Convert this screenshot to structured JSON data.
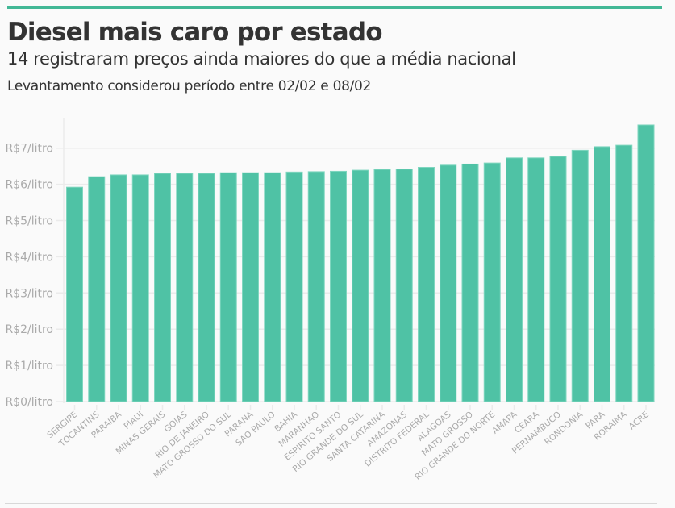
{
  "header": {
    "title": "Diesel mais caro por estado",
    "subtitle": "14 registraram preços ainda maiores do que a média nacional",
    "note": "Levantamento considerou período entre 02/02 e 08/02"
  },
  "colors": {
    "accent": "#43b896",
    "bar": "#4fc2a5",
    "bar_stroke": "#7fd6bf",
    "grid": "#ebebeb",
    "axis_text": "#aaaaaa",
    "text": "#333333"
  },
  "chart_data": {
    "type": "bar",
    "title": "Diesel mais caro por estado",
    "subtitle": "14 registraram preços ainda maiores do que a média nacional",
    "xlabel": "",
    "ylabel": "",
    "ylim": [
      0,
      7.8
    ],
    "grid": true,
    "legend": "none",
    "y_ticks": [
      0,
      1,
      2,
      3,
      4,
      5,
      6,
      7
    ],
    "y_tick_labels": [
      "R$0/litro",
      "R$1/litro",
      "R$2/litro",
      "R$3/litro",
      "R$4/litro",
      "R$5/litro",
      "R$6/litro",
      "R$7/litro"
    ],
    "categories": [
      "SERGIPE",
      "TOCANTINS",
      "PARAIBA",
      "PIAUI",
      "MINAS GERAIS",
      "GOIAS",
      "RIO DE JANEIRO",
      "MATO GROSSO DO SUL",
      "PARANA",
      "SAO PAULO",
      "BAHIA",
      "MARANHAO",
      "ESPIRITO SANTO",
      "RIO GRANDE DO SUL",
      "SANTA CATARINA",
      "AMAZONAS",
      "DISTRITO FEDERAL",
      "ALAGOAS",
      "MATO GROSSO",
      "RIO GRANDE DO NORTE",
      "AMAPA",
      "CEARA",
      "PERNAMBUCO",
      "RONDONIA",
      "PARA",
      "RORAIMA",
      "ACRE"
    ],
    "values": [
      5.92,
      6.21,
      6.26,
      6.26,
      6.3,
      6.3,
      6.3,
      6.32,
      6.32,
      6.32,
      6.34,
      6.35,
      6.36,
      6.39,
      6.41,
      6.42,
      6.47,
      6.53,
      6.56,
      6.59,
      6.73,
      6.73,
      6.77,
      6.94,
      7.04,
      7.08,
      7.64
    ]
  }
}
